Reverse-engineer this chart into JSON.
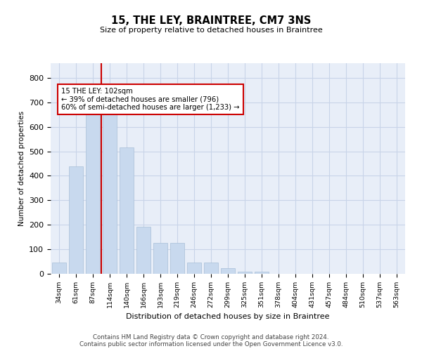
{
  "title": "15, THE LEY, BRAINTREE, CM7 3NS",
  "subtitle": "Size of property relative to detached houses in Braintree",
  "xlabel": "Distribution of detached houses by size in Braintree",
  "ylabel": "Number of detached properties",
  "bar_labels": [
    "34sqm",
    "61sqm",
    "87sqm",
    "114sqm",
    "140sqm",
    "166sqm",
    "193sqm",
    "219sqm",
    "246sqm",
    "272sqm",
    "299sqm",
    "325sqm",
    "351sqm",
    "378sqm",
    "404sqm",
    "431sqm",
    "457sqm",
    "484sqm",
    "510sqm",
    "537sqm",
    "563sqm"
  ],
  "bar_values": [
    45,
    440,
    660,
    660,
    515,
    192,
    125,
    125,
    45,
    45,
    22,
    8,
    8,
    0,
    0,
    0,
    0,
    0,
    0,
    0,
    0
  ],
  "bar_color": "#c8d9ee",
  "bar_edgecolor": "#a8bfd8",
  "vline_x": 2.5,
  "vline_color": "#cc0000",
  "annotation_text": "15 THE LEY: 102sqm\n← 39% of detached houses are smaller (796)\n60% of semi-detached houses are larger (1,233) →",
  "annotation_box_color": "#ffffff",
  "annotation_box_edgecolor": "#cc0000",
  "ylim": [
    0,
    860
  ],
  "yticks": [
    0,
    100,
    200,
    300,
    400,
    500,
    600,
    700,
    800
  ],
  "grid_color": "#c8d4e8",
  "background_color": "#e8eef8",
  "footer1": "Contains HM Land Registry data © Crown copyright and database right 2024.",
  "footer2": "Contains public sector information licensed under the Open Government Licence v3.0."
}
